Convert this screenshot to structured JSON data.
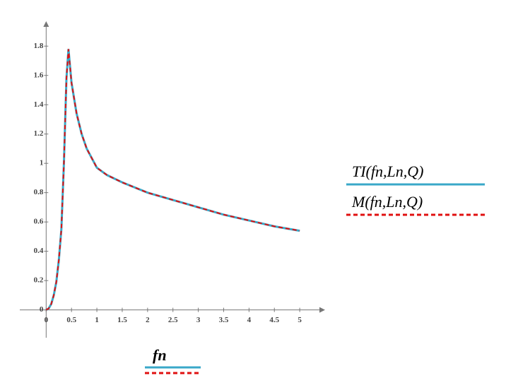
{
  "chart_data": {
    "type": "line",
    "x_label": "fn",
    "x": [
      0,
      0.05,
      0.1,
      0.15,
      0.2,
      0.25,
      0.3,
      0.35,
      0.4,
      0.44,
      0.5,
      0.6,
      0.7,
      0.8,
      1,
      1.2,
      1.5,
      2,
      2.5,
      3,
      3.5,
      4,
      4.5,
      5
    ],
    "series": [
      {
        "name": "TI(fn,Ln,Q)",
        "color": "#3aa8c8",
        "line_style": "solid",
        "values": [
          0,
          0.01,
          0.04,
          0.1,
          0.19,
          0.34,
          0.55,
          1.0,
          1.58,
          1.78,
          1.55,
          1.34,
          1.2,
          1.1,
          0.97,
          0.92,
          0.87,
          0.8,
          0.75,
          0.7,
          0.65,
          0.61,
          0.57,
          0.54
        ]
      },
      {
        "name": "M(fn,Ln,Q)",
        "color": "#e01010",
        "line_style": "dashed",
        "values": [
          0,
          0.01,
          0.04,
          0.1,
          0.19,
          0.34,
          0.55,
          1.0,
          1.58,
          1.78,
          1.55,
          1.34,
          1.2,
          1.1,
          0.97,
          0.92,
          0.87,
          0.8,
          0.75,
          0.7,
          0.65,
          0.61,
          0.57,
          0.54
        ]
      }
    ],
    "xlim": [
      -0.52,
      5.5
    ],
    "ylim": [
      -0.19,
      1.97
    ],
    "xticks": [
      0,
      0.5,
      1,
      1.5,
      2,
      2.5,
      3,
      3.5,
      4,
      4.5,
      5
    ],
    "yticks": [
      0,
      0.2,
      0.4,
      0.6,
      0.8,
      1,
      1.2,
      1.4,
      1.6,
      1.8
    ],
    "legend": "right"
  }
}
